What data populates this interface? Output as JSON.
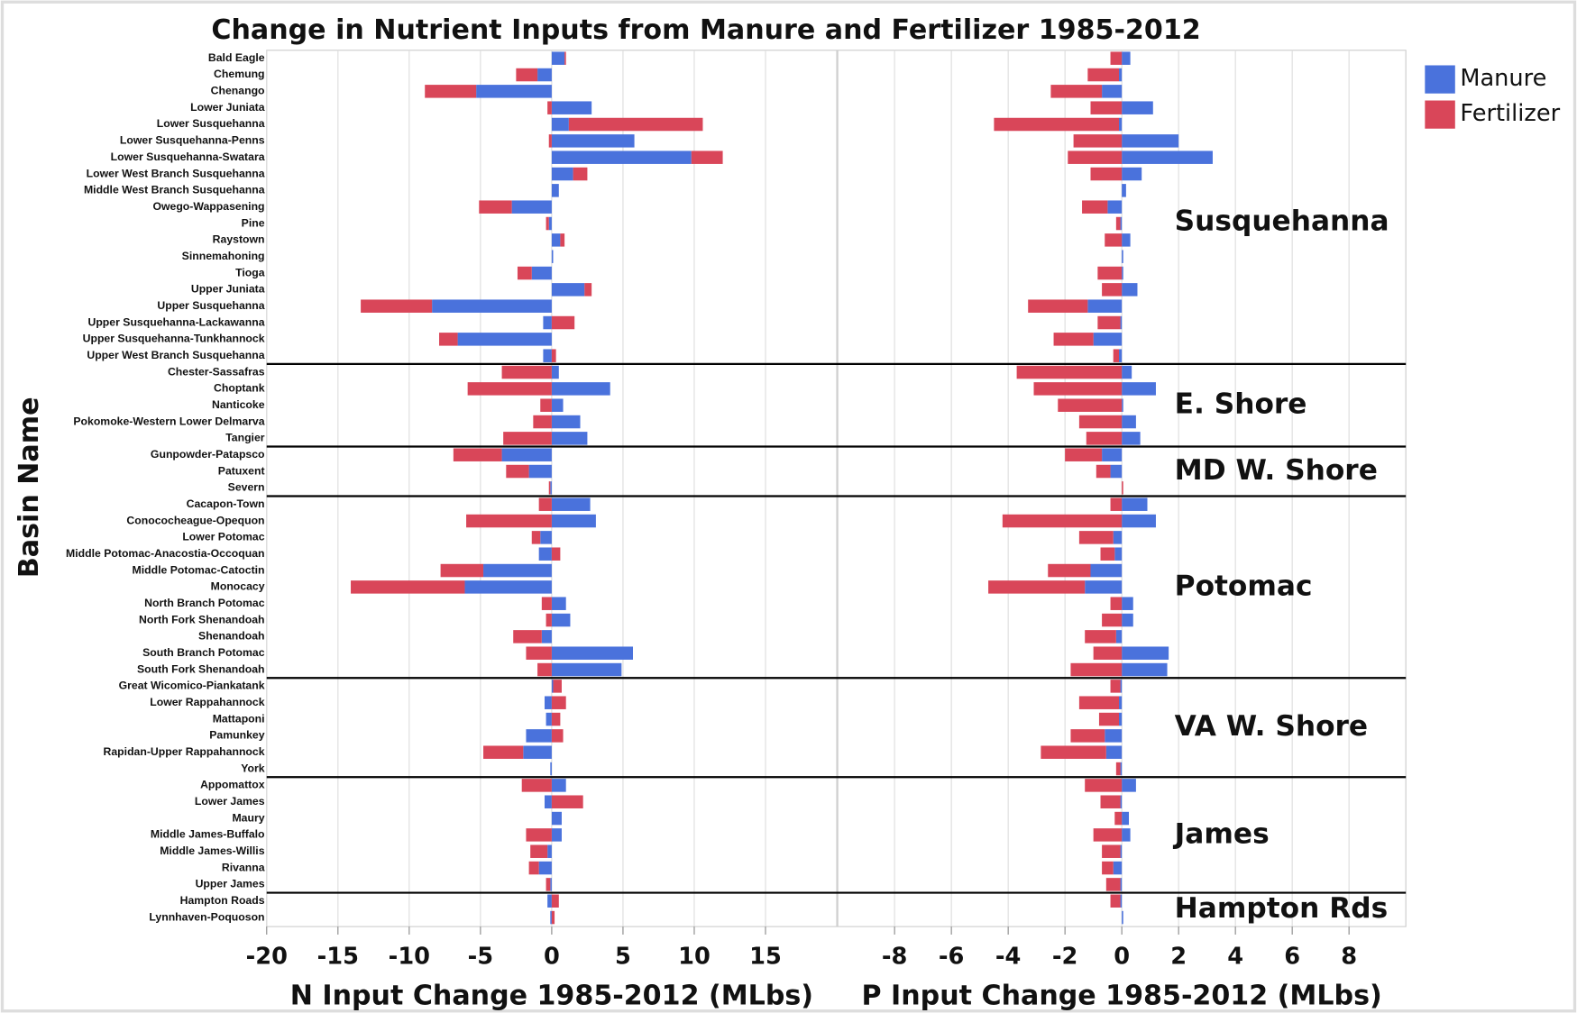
{
  "chart_data": {
    "type": "bar",
    "orientation": "horizontal",
    "stacked": true,
    "title": "Change in Nutrient Inputs from Manure and Fertilizer 1985-2012",
    "ylabel": "Basin Name",
    "legend": "top-right",
    "grid": true,
    "categories": [
      "Bald Eagle",
      "Chemung",
      "Chenango",
      "Lower Juniata",
      "Lower Susquehanna",
      "Lower Susquehanna-Penns",
      "Lower Susquehanna-Swatara",
      "Lower West Branch Susquehanna",
      "Middle West Branch Susquehanna",
      "Owego-Wappasening",
      "Pine",
      "Raystown",
      "Sinnemahoning",
      "Tioga",
      "Upper Juniata",
      "Upper Susquehanna",
      "Upper Susquehanna-Lackawanna",
      "Upper Susquehanna-Tunkhannock",
      "Upper West Branch Susquehanna",
      "Chester-Sassafras",
      "Choptank",
      "Nanticoke",
      "Pokomoke-Western Lower Delmarva",
      "Tangier",
      "Gunpowder-Patapsco",
      "Patuxent",
      "Severn",
      "Cacapon-Town",
      "Conococheague-Opequon",
      "Lower Potomac",
      "Middle Potomac-Anacostia-Occoquan",
      "Middle Potomac-Catoctin",
      "Monocacy",
      "North Branch Potomac",
      "North Fork Shenandoah",
      "Shenandoah",
      "South Branch Potomac",
      "South Fork Shenandoah",
      "Great Wicomico-Piankatank",
      "Lower Rappahannock",
      "Mattaponi",
      "Pamunkey",
      "Rapidan-Upper Rappahannock",
      "York",
      "Appomattox",
      "Lower James",
      "Maury",
      "Middle James-Buffalo",
      "Middle James-Willis",
      "Rivanna",
      "Upper James",
      "Hampton Roads",
      "Lynnhaven-Poquoson"
    ],
    "groups": [
      {
        "name": "Susquehanna",
        "size": 19
      },
      {
        "name": "E. Shore",
        "size": 5
      },
      {
        "name": "MD W. Shore",
        "size": 3
      },
      {
        "name": "Potomac",
        "size": 11
      },
      {
        "name": "VA W. Shore",
        "size": 6
      },
      {
        "name": "James",
        "size": 7
      },
      {
        "name": "Hampton Rds",
        "size": 2
      }
    ],
    "panels": [
      {
        "xlabel": "N Input Change 1985-2012 (MLbs)",
        "xlim": [
          -20,
          20
        ],
        "xticks": [
          -20,
          -15,
          -10,
          -5,
          0,
          5,
          10,
          15
        ],
        "series": [
          {
            "name": "Manure",
            "color": "#4a72dc",
            "values": [
              0.9,
              -1,
              -5.3,
              2.8,
              1.2,
              5.8,
              9.8,
              1.5,
              0.5,
              -2.8,
              -0.2,
              0.6,
              0.1,
              -1.4,
              2.3,
              -8.4,
              -0.6,
              -6.6,
              -0.6,
              0.5,
              4.1,
              0.8,
              2,
              2.5,
              -3.5,
              -1.6,
              -0.1,
              2.7,
              3.1,
              -0.8,
              -0.9,
              -4.8,
              -6.1,
              1,
              1.3,
              -0.7,
              5.7,
              4.9,
              0.1,
              -0.5,
              -0.4,
              -1.8,
              -2,
              -0.1,
              1,
              -0.5,
              0.7,
              0.7,
              -0.3,
              -0.9,
              -0.1,
              -0.3,
              -0.1
            ]
          },
          {
            "name": "Fertilizer",
            "color": "#d94659",
            "values": [
              0.1,
              -1.5,
              -3.6,
              -0.3,
              9.4,
              -0.2,
              2.2,
              1,
              0,
              -2.3,
              -0.2,
              0.3,
              0,
              -1,
              0.5,
              -5,
              1.6,
              -1.3,
              0.3,
              -3.5,
              -5.9,
              -0.8,
              -1.3,
              -3.4,
              -3.4,
              -1.6,
              -0.1,
              -0.9,
              -6,
              -0.6,
              0.6,
              -3,
              -8,
              -0.7,
              -0.4,
              -2,
              -1.8,
              -1,
              0.6,
              1,
              0.6,
              0.8,
              -2.8,
              0,
              -2.1,
              2.2,
              0,
              -1.8,
              -1.2,
              -0.7,
              -0.3,
              0.5,
              0.2
            ]
          }
        ]
      },
      {
        "xlabel": "P Input Change 1985-2012 (MLbs)",
        "xlim": [
          -10,
          10
        ],
        "xticks": [
          -8,
          -6,
          -4,
          -2,
          0,
          2,
          4,
          6,
          8
        ],
        "series": [
          {
            "name": "Manure",
            "color": "#4a72dc",
            "values": [
              0.3,
              -0.1,
              -0.7,
              1.1,
              -0.1,
              2,
              3.2,
              0.7,
              0.15,
              -0.5,
              -0.05,
              0.3,
              0.05,
              0.05,
              0.55,
              -1.2,
              -0.05,
              -1,
              -0.1,
              0.35,
              1.2,
              0.05,
              0.5,
              0.65,
              -0.7,
              -0.4,
              0,
              0.9,
              1.2,
              -0.3,
              -0.25,
              -1.1,
              -1.3,
              0.4,
              0.4,
              -0.2,
              1.65,
              1.6,
              -0.05,
              -0.1,
              -0.1,
              -0.6,
              -0.55,
              -0.05,
              0.5,
              -0.05,
              0.25,
              0.3,
              -0.05,
              -0.3,
              -0.05,
              -0.05,
              0.05
            ]
          },
          {
            "name": "Fertilizer",
            "color": "#d94659",
            "values": [
              -0.4,
              -1.1,
              -1.8,
              -1.1,
              -4.4,
              -1.7,
              -1.9,
              -1.1,
              0,
              -0.9,
              -0.15,
              -0.6,
              0,
              -0.85,
              -0.7,
              -2.1,
              -0.8,
              -1.4,
              -0.2,
              -3.7,
              -3.1,
              -2.25,
              -1.5,
              -1.25,
              -1.3,
              -0.5,
              0.05,
              -0.4,
              -4.2,
              -1.2,
              -0.5,
              -1.5,
              -3.4,
              -0.4,
              -0.7,
              -1.1,
              -1,
              -1.8,
              -0.35,
              -1.4,
              -0.7,
              -1.2,
              -2.3,
              -0.15,
              -1.3,
              -0.7,
              -0.25,
              -1,
              -0.65,
              -0.4,
              -0.5,
              -0.35,
              0
            ]
          }
        ]
      }
    ]
  }
}
